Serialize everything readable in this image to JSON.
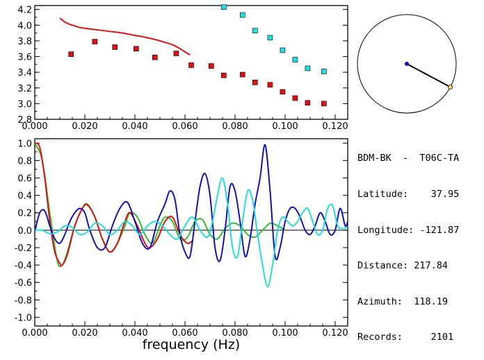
{
  "info": {
    "station_pair": "BDM-BK  -  T06C-TA",
    "latitude_label": "Latitude:",
    "latitude_value": "37.95",
    "longitude_label": "Longitude:",
    "longitude_value": "-121.87",
    "distance_label": "Distance:",
    "distance_value": "217.84",
    "azimuth_label": "Azimuth:",
    "azimuth_value": "118.19",
    "records_label": "Records:",
    "records_value": "2101"
  },
  "colors": {
    "red": "#dd1111",
    "cyan": "#22dddd",
    "blue": "#1111bb",
    "green": "#33bb33",
    "black": "#000000",
    "azimuth_dot": "#ffdd55"
  },
  "chart_data": [
    {
      "type": "scatter",
      "xlim": [
        0.0,
        0.125
      ],
      "ylim": [
        2.8,
        4.25
      ],
      "xticks": [
        "0.000",
        "0.020",
        "0.040",
        "0.060",
        "0.080",
        "0.100",
        "0.120"
      ],
      "yticks": [
        "2.8",
        "3.0",
        "3.2",
        "3.4",
        "3.6",
        "3.8",
        "4.0",
        "4.2"
      ],
      "grid": false,
      "series": [
        {
          "kind": "line",
          "color": "red",
          "x": [
            0.01,
            0.012,
            0.014,
            0.016,
            0.018,
            0.02,
            0.025,
            0.03,
            0.035,
            0.04,
            0.045,
            0.05,
            0.055,
            0.058,
            0.06,
            0.062
          ],
          "y": [
            4.09,
            4.04,
            4.01,
            3.99,
            3.97,
            3.96,
            3.94,
            3.92,
            3.9,
            3.87,
            3.84,
            3.8,
            3.75,
            3.7,
            3.66,
            3.62
          ]
        },
        {
          "kind": "markers",
          "color": "red",
          "x": [
            0.0145,
            0.024,
            0.032,
            0.0405,
            0.048,
            0.0565,
            0.0625,
            0.0705,
            0.0755,
            0.083,
            0.088,
            0.094,
            0.099,
            0.104,
            0.109,
            0.1155
          ],
          "y": [
            3.63,
            3.79,
            3.72,
            3.7,
            3.59,
            3.64,
            3.49,
            3.48,
            3.36,
            3.37,
            3.27,
            3.24,
            3.15,
            3.07,
            3.01,
            3.0
          ]
        },
        {
          "kind": "markers",
          "color": "cyan",
          "x": [
            0.0755,
            0.083,
            0.088,
            0.094,
            0.099,
            0.104,
            0.109,
            0.1155
          ],
          "y": [
            4.23,
            4.13,
            3.93,
            3.84,
            3.68,
            3.56,
            3.45,
            3.41
          ]
        }
      ]
    },
    {
      "type": "line",
      "xlabel": "frequency  (Hz)",
      "xlim": [
        0.0,
        0.125
      ],
      "ylim": [
        -1.1,
        1.05
      ],
      "xticks": [
        "0.000",
        "0.020",
        "0.040",
        "0.060",
        "0.080",
        "0.100",
        "0.120"
      ],
      "yticks": [
        "-1.0",
        "-0.8",
        "-0.6",
        "-0.4",
        "-0.2",
        "0.0",
        "0.2",
        "0.4",
        "0.6",
        "0.8",
        "1.0"
      ],
      "zero_line": true,
      "grid": false,
      "series": [
        {
          "color": "green",
          "x": [
            0.0,
            0.003,
            0.006,
            0.009,
            0.011,
            0.013,
            0.016,
            0.019,
            0.021,
            0.024,
            0.027,
            0.03,
            0.033,
            0.036,
            0.038,
            0.041,
            0.044,
            0.047,
            0.05,
            0.052,
            0.055,
            0.058,
            0.061,
            0.064,
            0.067,
            0.07,
            0.073,
            0.076,
            0.079,
            0.082,
            0.085,
            0.088,
            0.091,
            0.094,
            0.097,
            0.1
          ],
          "y": [
            1.0,
            0.8,
            0.2,
            -0.35,
            -0.4,
            -0.25,
            0.05,
            0.25,
            0.3,
            0.15,
            -0.1,
            -0.25,
            -0.15,
            0.05,
            0.2,
            0.15,
            -0.05,
            -0.15,
            0.05,
            0.15,
            0.1,
            -0.1,
            -0.08,
            0.1,
            0.12,
            -0.05,
            -0.1,
            0.02,
            0.08,
            0.05,
            -0.05,
            -0.08,
            0.0,
            0.08,
            0.05,
            0.0
          ]
        },
        {
          "color": "red",
          "x": [
            0.0,
            0.002,
            0.004,
            0.006,
            0.008,
            0.01,
            0.011,
            0.013,
            0.016,
            0.019,
            0.021,
            0.024,
            0.027,
            0.03,
            0.033,
            0.036,
            0.038,
            0.041,
            0.044,
            0.046,
            0.049,
            0.052,
            0.055,
            0.058,
            0.061,
            0.063
          ],
          "y": [
            1.0,
            0.95,
            0.6,
            0.1,
            -0.25,
            -0.38,
            -0.4,
            -0.28,
            0.05,
            0.25,
            0.29,
            0.15,
            -0.1,
            -0.25,
            -0.15,
            0.1,
            0.2,
            0.05,
            -0.15,
            -0.2,
            -0.1,
            0.1,
            0.15,
            -0.05,
            -0.15,
            -0.12
          ]
        },
        {
          "color": "blue",
          "x": [
            0.0,
            0.002,
            0.004,
            0.006,
            0.008,
            0.01,
            0.012,
            0.014,
            0.016,
            0.018,
            0.02,
            0.022,
            0.025,
            0.028,
            0.031,
            0.034,
            0.037,
            0.04,
            0.043,
            0.046,
            0.049,
            0.052,
            0.054,
            0.056,
            0.058,
            0.06,
            0.062,
            0.064,
            0.066,
            0.068,
            0.07,
            0.072,
            0.074,
            0.076,
            0.078,
            0.08,
            0.082,
            0.084,
            0.086,
            0.088,
            0.09,
            0.092,
            0.094,
            0.096,
            0.098,
            0.1,
            0.102,
            0.104,
            0.106,
            0.108,
            0.11,
            0.112,
            0.114,
            0.116,
            0.118,
            0.12,
            0.122,
            0.124,
            0.125
          ],
          "y": [
            -0.02,
            0.2,
            0.22,
            0.05,
            -0.1,
            -0.15,
            -0.05,
            0.1,
            0.2,
            0.25,
            0.2,
            0.0,
            -0.2,
            -0.2,
            0.05,
            0.25,
            0.32,
            0.1,
            -0.15,
            -0.2,
            0.1,
            0.3,
            0.45,
            0.35,
            -0.05,
            -0.25,
            -0.3,
            0.1,
            0.5,
            0.65,
            0.4,
            -0.2,
            -0.35,
            0.0,
            0.5,
            0.45,
            0.1,
            -0.3,
            -0.1,
            0.3,
            0.6,
            0.98,
            0.45,
            -0.3,
            -0.2,
            0.1,
            0.25,
            0.25,
            0.15,
            0.0,
            -0.05,
            0.05,
            0.2,
            0.1,
            -0.05,
            0.0,
            0.25,
            0.05,
            0.1
          ]
        },
        {
          "color": "cyan",
          "x": [
            0.0,
            0.003,
            0.006,
            0.009,
            0.012,
            0.015,
            0.018,
            0.021,
            0.024,
            0.027,
            0.03,
            0.033,
            0.036,
            0.039,
            0.042,
            0.045,
            0.048,
            0.051,
            0.054,
            0.057,
            0.06,
            0.063,
            0.066,
            0.069,
            0.071,
            0.073,
            0.075,
            0.077,
            0.079,
            0.081,
            0.083,
            0.085,
            0.087,
            0.089,
            0.091,
            0.093,
            0.095,
            0.097,
            0.099,
            0.101,
            0.103,
            0.105,
            0.107,
            0.109,
            0.111,
            0.113,
            0.115,
            0.117,
            0.119,
            0.121,
            0.123,
            0.125
          ],
          "y": [
            0.0,
            0.0,
            -0.04,
            -0.02,
            0.05,
            0.03,
            -0.05,
            -0.02,
            0.08,
            0.05,
            -0.05,
            0.0,
            0.1,
            0.05,
            -0.05,
            0.05,
            0.1,
            0.05,
            -0.05,
            -0.1,
            0.05,
            0.15,
            0.0,
            -0.08,
            0.1,
            0.4,
            0.6,
            0.3,
            -0.2,
            -0.3,
            0.1,
            0.45,
            0.35,
            -0.05,
            -0.4,
            -0.65,
            -0.4,
            0.0,
            0.15,
            0.1,
            0.05,
            0.1,
            0.2,
            0.25,
            0.1,
            -0.05,
            0.0,
            0.25,
            0.28,
            0.05,
            0.02,
            0.03
          ]
        }
      ]
    }
  ]
}
